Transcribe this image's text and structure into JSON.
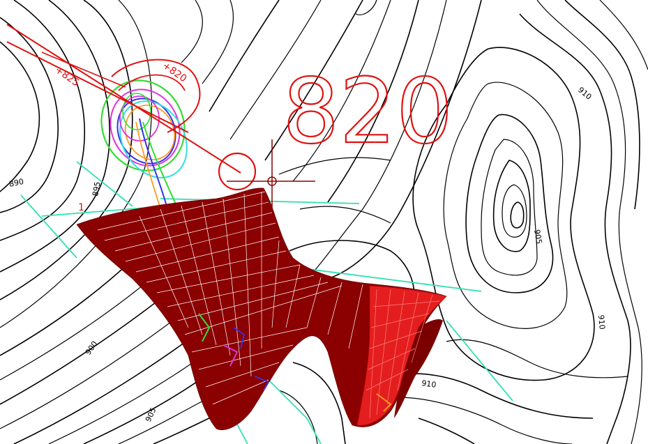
{
  "scene": {
    "station_label_large": "820",
    "station_label_a": "+820",
    "station_label_b": "+825",
    "marker_label": "1",
    "contour_labels": {
      "c890_left": "890",
      "c895": "895",
      "c900": "900",
      "c905_bottom": "905",
      "c905_right": "905",
      "c910_top": "910",
      "c910_right": "910",
      "c910_bottom": "910"
    }
  },
  "colors": {
    "background": "#ffffff",
    "contour": "#000000",
    "surface_dark": "#8b0000",
    "surface_bright": "#e41e1e",
    "station_text": "#e01010",
    "crosshair": "#8b0000",
    "teal_line": "#33e0b0",
    "ring_green": "#33dd33",
    "ring_magenta": "#dd33dd",
    "ring_blue": "#3333ee",
    "ring_cyan": "#33dddd",
    "ring_orange": "#ff9922"
  }
}
